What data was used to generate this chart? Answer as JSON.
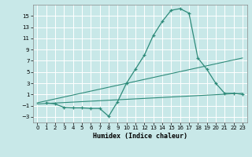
{
  "xlabel": "Humidex (Indice chaleur)",
  "bg_color": "#c8e8e8",
  "grid_color": "#ffffff",
  "line_color": "#2e8b7a",
  "xlim": [
    -0.5,
    23.5
  ],
  "ylim": [
    -4,
    17
  ],
  "xticks": [
    0,
    1,
    2,
    3,
    4,
    5,
    6,
    7,
    8,
    9,
    10,
    11,
    12,
    13,
    14,
    15,
    16,
    17,
    18,
    19,
    20,
    21,
    22,
    23
  ],
  "yticks": [
    -3,
    -1,
    1,
    3,
    5,
    7,
    9,
    11,
    13,
    15
  ],
  "curve_x": [
    1,
    2,
    3,
    4,
    5,
    6,
    7,
    8,
    9,
    10,
    11,
    12,
    13,
    14,
    15,
    16,
    17,
    18,
    19,
    20,
    21,
    22,
    23
  ],
  "curve_y": [
    -0.5,
    -0.7,
    -1.3,
    -1.4,
    -1.4,
    -1.5,
    -1.5,
    -2.9,
    -0.3,
    3.0,
    5.5,
    8.0,
    11.5,
    14.0,
    16.0,
    16.3,
    15.5,
    7.5,
    5.5,
    3.0,
    1.2,
    1.2,
    1.0
  ],
  "line1_x": [
    0,
    23
  ],
  "line1_y": [
    -0.5,
    7.5
  ],
  "line2_x": [
    0,
    23
  ],
  "line2_y": [
    -0.7,
    1.2
  ],
  "xlabel_fontsize": 6,
  "tick_fontsize": 5
}
